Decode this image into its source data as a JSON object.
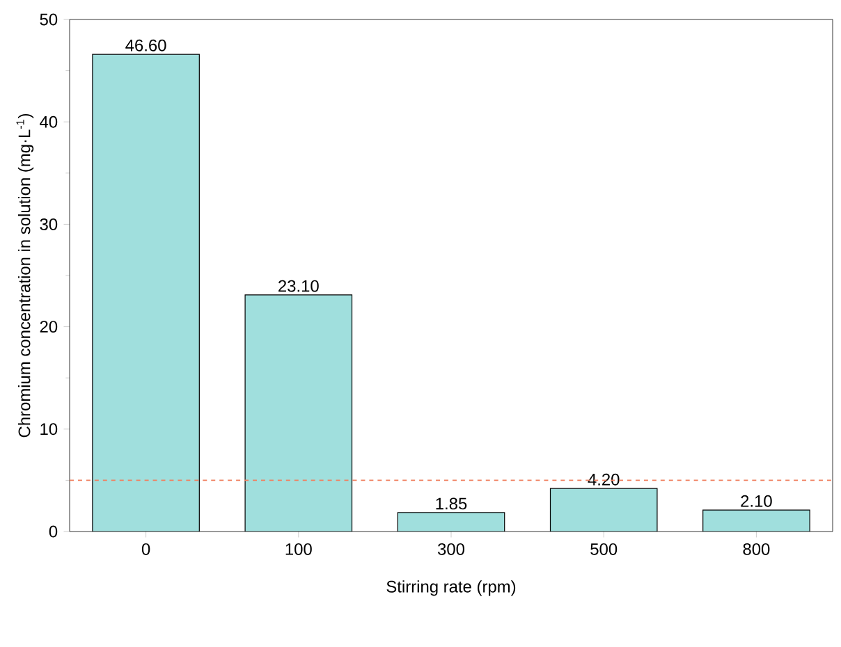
{
  "chart_data": {
    "type": "bar",
    "xlabel": "Stirring rate (rpm)",
    "ylabel": "Chromium concentration in solution (mg·L$^{-1}$)",
    "categories": [
      "0",
      "100",
      "300",
      "500",
      "800"
    ],
    "values": [
      46.6,
      23.1,
      1.85,
      4.2,
      2.1
    ],
    "value_labels": [
      "46.60",
      "23.10",
      "1.85",
      "4.20",
      "2.10"
    ],
    "color": "#a0dfdd",
    "ylim": [
      0,
      50
    ],
    "yticks": [
      0,
      10,
      20,
      30,
      40,
      50
    ],
    "ref_lines": [
      {
        "axis": "y",
        "value": 5,
        "color": "#f08060",
        "line_style": "dashed"
      }
    ],
    "grid": false
  }
}
